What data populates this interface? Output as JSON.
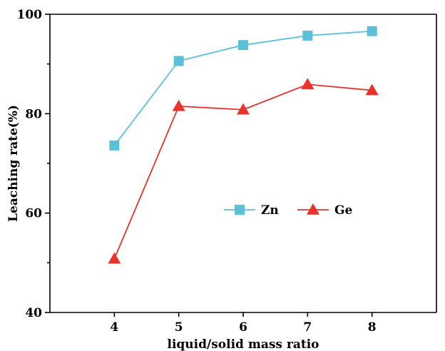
{
  "chart_data": {
    "type": "line",
    "title": "",
    "xlabel": "liquid/solid mass ratio",
    "ylabel": "Leaching rate(%)",
    "x": [
      4,
      5,
      6,
      7,
      8
    ],
    "xlim": [
      3,
      9
    ],
    "ylim": [
      40,
      100
    ],
    "xticks": [
      "4",
      "5",
      "6",
      "7",
      "8"
    ],
    "yticks": [
      "40",
      "60",
      "80",
      "100"
    ],
    "grid": false,
    "legend_position": "center-right",
    "series": [
      {
        "name": "Zn",
        "values": [
          73.6,
          90.6,
          93.8,
          95.7,
          96.6
        ],
        "color": "#5bc1d8",
        "marker": "square"
      },
      {
        "name": "Ge",
        "values": [
          50.8,
          81.5,
          80.8,
          85.9,
          84.7
        ],
        "color": "#e8322c",
        "marker": "triangle"
      }
    ]
  }
}
